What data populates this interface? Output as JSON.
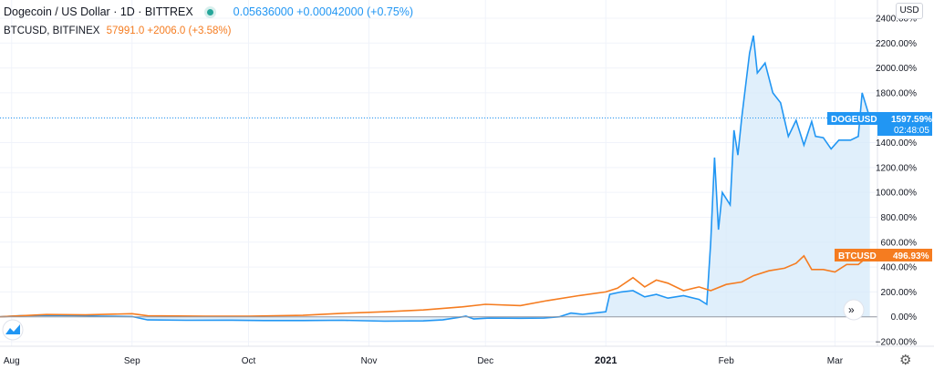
{
  "legend": {
    "main_title": "Dogecoin / US Dollar · 1D · BITTREX",
    "main_values": "0.05636000 +0.00042000 (+0.75%)",
    "secondary_title": "BTCUSD, BITFINEX",
    "secondary_values": "57991.0 +2006.0 (+3.58%)"
  },
  "currency_button": "USD",
  "tags": {
    "doge_label": "DOGEUSD",
    "doge_value": "1597.59%",
    "doge_time": "02:48:05",
    "btc_label": "BTCUSD",
    "btc_value": "496.93%"
  },
  "colors": {
    "doge": "#2196f3",
    "doge_fill": "#d6e9fa",
    "btc": "#f57c20",
    "status_dot": "#26a69a"
  },
  "icons": {
    "logo": "tradingview-logo-icon",
    "collapse": "chevrons-right-icon",
    "settings": "gear-icon"
  },
  "chart_data": {
    "type": "line",
    "title": "Dogecoin / US Dollar · 1D · BITTREX",
    "y_unit": "percent change",
    "ylim": [
      -200,
      2400
    ],
    "y_ticks": [
      -200,
      0,
      200,
      400,
      600,
      800,
      1000,
      1200,
      1400,
      1600,
      1800,
      2000,
      2200,
      2400
    ],
    "y_tick_labels": [
      "−200.00%",
      "0.00%",
      "200.00%",
      "400.00%",
      "600.00%",
      "800.00%",
      "1000.00%",
      "1200.00%",
      "1400.00%",
      "1600.00%",
      "1800.00%",
      "2000.00%",
      "2200.00%",
      "2400.00%"
    ],
    "x_range": [
      "2020-07-29",
      "2021-03-11"
    ],
    "x_ticks": [
      {
        "label": "Aug",
        "date": "2020-08-01"
      },
      {
        "label": "Sep",
        "date": "2020-09-01"
      },
      {
        "label": "Oct",
        "date": "2020-10-01"
      },
      {
        "label": "Nov",
        "date": "2020-11-01"
      },
      {
        "label": "Dec",
        "date": "2020-12-01"
      },
      {
        "label": "2021",
        "date": "2021-01-01",
        "bold": true
      },
      {
        "label": "Feb",
        "date": "2021-02-01"
      },
      {
        "label": "Mar",
        "date": "2021-03-01"
      }
    ],
    "series": [
      {
        "name": "DOGEUSD",
        "points": [
          [
            "2020-07-29",
            0
          ],
          [
            "2020-08-03",
            8
          ],
          [
            "2020-08-10",
            12
          ],
          [
            "2020-08-17",
            10
          ],
          [
            "2020-08-24",
            5
          ],
          [
            "2020-09-01",
            2
          ],
          [
            "2020-09-05",
            -25
          ],
          [
            "2020-09-15",
            -28
          ],
          [
            "2020-09-25",
            -27
          ],
          [
            "2020-10-05",
            -30
          ],
          [
            "2020-10-15",
            -30
          ],
          [
            "2020-10-25",
            -28
          ],
          [
            "2020-11-05",
            -35
          ],
          [
            "2020-11-15",
            -33
          ],
          [
            "2020-11-20",
            -25
          ],
          [
            "2020-11-24",
            -5
          ],
          [
            "2020-11-26",
            5
          ],
          [
            "2020-11-28",
            -18
          ],
          [
            "2020-12-02",
            -10
          ],
          [
            "2020-12-10",
            -12
          ],
          [
            "2020-12-16",
            -10
          ],
          [
            "2020-12-20",
            0
          ],
          [
            "2020-12-23",
            30
          ],
          [
            "2020-12-26",
            20
          ],
          [
            "2020-12-29",
            30
          ],
          [
            "2021-01-01",
            40
          ],
          [
            "2021-01-02",
            180
          ],
          [
            "2021-01-05",
            200
          ],
          [
            "2021-01-08",
            210
          ],
          [
            "2021-01-11",
            160
          ],
          [
            "2021-01-14",
            180
          ],
          [
            "2021-01-17",
            150
          ],
          [
            "2021-01-21",
            170
          ],
          [
            "2021-01-25",
            140
          ],
          [
            "2021-01-27",
            100
          ],
          [
            "2021-01-28",
            600
          ],
          [
            "2021-01-29",
            1280
          ],
          [
            "2021-01-30",
            700
          ],
          [
            "2021-01-31",
            1000
          ],
          [
            "2021-02-02",
            900
          ],
          [
            "2021-02-03",
            1500
          ],
          [
            "2021-02-04",
            1300
          ],
          [
            "2021-02-05",
            1600
          ],
          [
            "2021-02-07",
            2120
          ],
          [
            "2021-02-08",
            2260
          ],
          [
            "2021-02-09",
            1960
          ],
          [
            "2021-02-11",
            2040
          ],
          [
            "2021-02-13",
            1800
          ],
          [
            "2021-02-15",
            1720
          ],
          [
            "2021-02-17",
            1450
          ],
          [
            "2021-02-19",
            1580
          ],
          [
            "2021-02-21",
            1380
          ],
          [
            "2021-02-23",
            1570
          ],
          [
            "2021-02-24",
            1450
          ],
          [
            "2021-02-26",
            1440
          ],
          [
            "2021-02-28",
            1350
          ],
          [
            "2021-03-02",
            1420
          ],
          [
            "2021-03-05",
            1420
          ],
          [
            "2021-03-07",
            1450
          ],
          [
            "2021-03-08",
            1800
          ],
          [
            "2021-03-10",
            1597.59
          ]
        ]
      },
      {
        "name": "BTCUSD",
        "points": [
          [
            "2020-07-29",
            0
          ],
          [
            "2020-08-10",
            18
          ],
          [
            "2020-08-20",
            15
          ],
          [
            "2020-09-01",
            25
          ],
          [
            "2020-09-05",
            8
          ],
          [
            "2020-09-20",
            5
          ],
          [
            "2020-10-01",
            5
          ],
          [
            "2020-10-15",
            12
          ],
          [
            "2020-10-25",
            28
          ],
          [
            "2020-11-05",
            40
          ],
          [
            "2020-11-15",
            55
          ],
          [
            "2020-11-25",
            80
          ],
          [
            "2020-12-01",
            100
          ],
          [
            "2020-12-10",
            90
          ],
          [
            "2020-12-17",
            130
          ],
          [
            "2020-12-25",
            170
          ],
          [
            "2021-01-01",
            200
          ],
          [
            "2021-01-04",
            230
          ],
          [
            "2021-01-08",
            315
          ],
          [
            "2021-01-11",
            240
          ],
          [
            "2021-01-14",
            295
          ],
          [
            "2021-01-17",
            270
          ],
          [
            "2021-01-21",
            210
          ],
          [
            "2021-01-25",
            240
          ],
          [
            "2021-01-28",
            210
          ],
          [
            "2021-02-01",
            260
          ],
          [
            "2021-02-05",
            280
          ],
          [
            "2021-02-08",
            330
          ],
          [
            "2021-02-12",
            370
          ],
          [
            "2021-02-16",
            390
          ],
          [
            "2021-02-19",
            430
          ],
          [
            "2021-02-21",
            490
          ],
          [
            "2021-02-23",
            380
          ],
          [
            "2021-02-26",
            380
          ],
          [
            "2021-03-01",
            360
          ],
          [
            "2021-03-04",
            420
          ],
          [
            "2021-03-07",
            420
          ],
          [
            "2021-03-10",
            496.93
          ]
        ]
      }
    ]
  }
}
